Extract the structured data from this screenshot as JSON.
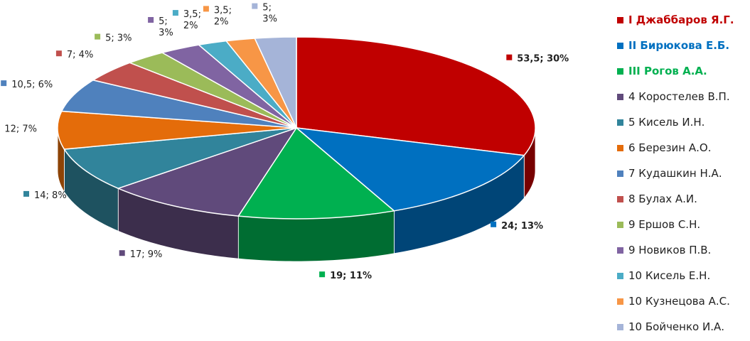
{
  "chart_data": {
    "type": "pie",
    "style": "3d-exploded",
    "legend_position": "right",
    "slices": [
      {
        "name": "I Джаббаров Я.Г.",
        "value": 53.5,
        "label": "53,5; 30%",
        "color": "#C00000",
        "highlight": true
      },
      {
        "name": "II Бирюкова Е.Б.",
        "value": 24,
        "label": "24; 13%",
        "color": "#0070C0",
        "highlight": true
      },
      {
        "name": "III Рогов А.А.",
        "value": 19,
        "label": "19; 11%",
        "color": "#00B050",
        "highlight": true
      },
      {
        "name": "4 Коростелев В.П.",
        "value": 17,
        "label": "17; 9%",
        "color": "#604A7B",
        "highlight": false
      },
      {
        "name": "5 Кисель И.Н.",
        "value": 14,
        "label": "14; 8%",
        "color": "#31849B",
        "highlight": false
      },
      {
        "name": "6 Березин А.О.",
        "value": 12,
        "label": "12; 7%",
        "color": "#E46C0A",
        "highlight": false
      },
      {
        "name": "7 Кудашкин Н.А.",
        "value": 10.5,
        "label": "10,5; 6%",
        "color": "#4F81BD",
        "highlight": false
      },
      {
        "name": "8 Булах А.И.",
        "value": 7,
        "label": "7; 4%",
        "color": "#C0504D",
        "highlight": false
      },
      {
        "name": "9 Ершов С.Н.",
        "value": 5,
        "label": "5; 3%",
        "color": "#9BBB59",
        "highlight": false
      },
      {
        "name": "9 Новиков П.В.",
        "value": 5,
        "label": "5;\n3%",
        "color": "#8064A2",
        "highlight": false
      },
      {
        "name": "10 Кисель Е.Н.",
        "value": 3.5,
        "label": "3,5;\n2%",
        "color": "#4BACC6",
        "highlight": false
      },
      {
        "name": "10 Кузнецова А.С.",
        "value": 3.5,
        "label": "3,5;\n2%",
        "color": "#F79646",
        "highlight": false
      },
      {
        "name": "10 Бойченко И.А.",
        "value": 5,
        "label": "5;\n3%",
        "color": "#A5B4D8",
        "highlight": false
      }
    ]
  }
}
